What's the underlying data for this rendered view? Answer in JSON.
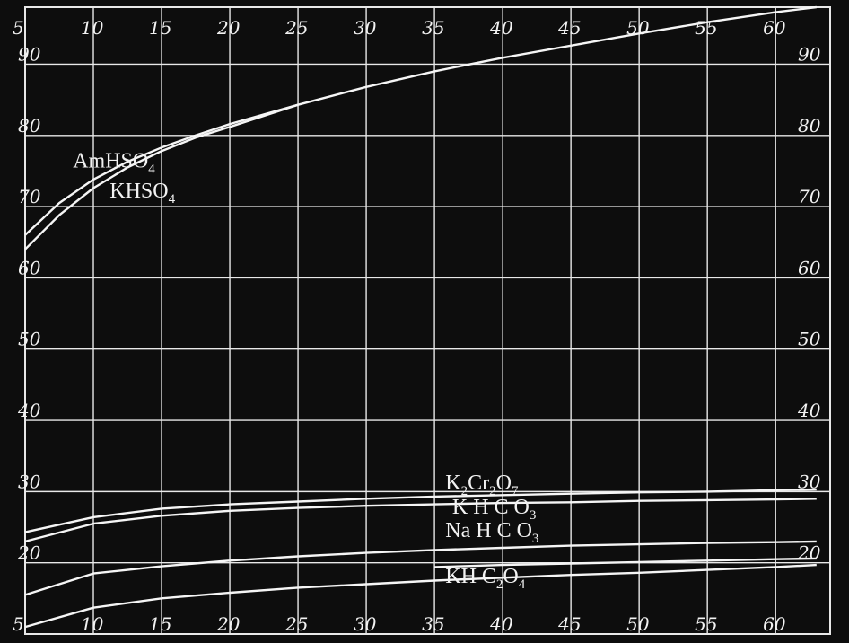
{
  "colors": {
    "background": "#0d0d0d",
    "grid": "#e8e8e8",
    "curve": "#f5f5f5"
  },
  "chart_data": {
    "type": "line",
    "title": "",
    "xlabel": "",
    "ylabel": "",
    "grid": true,
    "xlim": [
      5,
      64
    ],
    "ylim": [
      10,
      98
    ],
    "x_ticks": [
      5,
      10,
      15,
      20,
      25,
      30,
      35,
      40,
      45,
      50,
      55,
      60
    ],
    "y_ticks_left": [
      20,
      30,
      40,
      50,
      60,
      70,
      80,
      90
    ],
    "y_ticks_right": [
      20,
      30,
      40,
      50,
      60,
      70,
      80,
      90
    ],
    "x_tick_labels": [
      "5",
      "10",
      "15",
      "20",
      "25",
      "30",
      "35",
      "40",
      "45",
      "50",
      "55",
      "60"
    ],
    "y_tick_labels": [
      "20",
      "30",
      "40",
      "50",
      "60",
      "70",
      "80",
      "90"
    ],
    "series": [
      {
        "name": "AmHSO4",
        "label_parts": [
          "AmHSO",
          "4"
        ],
        "label_at": [
          8.5,
          75.5
        ],
        "x": [
          5,
          7.5,
          10,
          12.5,
          15,
          17.5,
          20,
          25,
          30,
          35,
          40,
          45,
          50,
          55,
          60,
          63
        ],
        "y": [
          66,
          70.5,
          73.8,
          76.3,
          78.3,
          80,
          81.6,
          84.3,
          86.8,
          89,
          90.9,
          92.6,
          94.3,
          95.9,
          97.3,
          98
        ]
      },
      {
        "name": "KHSO4",
        "label_parts": [
          "KHSO",
          "4"
        ],
        "label_at": [
          11.2,
          71.3
        ],
        "x": [
          5,
          7.5,
          10,
          12.5,
          15,
          17.5,
          20,
          25
        ],
        "y": [
          64,
          68.8,
          72.6,
          75.5,
          77.8,
          79.7,
          81.2,
          84.3
        ]
      },
      {
        "name": "K2Cr2O7",
        "label_parts": [
          "K",
          "2",
          "Cr",
          "2",
          "O",
          "7"
        ],
        "label_at": [
          35.8,
          30.3
        ],
        "x": [
          5,
          10,
          15,
          20,
          25,
          30,
          35,
          40,
          45,
          50,
          55,
          60,
          63
        ],
        "y": [
          24.3,
          26.4,
          27.6,
          28.2,
          28.6,
          29,
          29.3,
          29.5,
          29.7,
          29.9,
          30,
          30.2,
          30.3
        ]
      },
      {
        "name": "KHCO3",
        "label_parts": [
          "K H  C O",
          "3"
        ],
        "label_at": [
          36.3,
          26.9
        ],
        "x": [
          5,
          10,
          15,
          20,
          25,
          30,
          35,
          40,
          45,
          50,
          55,
          60,
          63
        ],
        "y": [
          23,
          25.5,
          26.6,
          27.3,
          27.7,
          28,
          28.2,
          28.4,
          28.5,
          28.7,
          28.8,
          28.9,
          29
        ]
      },
      {
        "name": "NaHCO3",
        "label_parts": [
          "Na H  C O",
          "3"
        ],
        "label_at": [
          35.8,
          23.6
        ],
        "x": [
          5,
          10,
          15,
          20,
          25,
          30,
          35,
          40,
          45,
          50,
          55,
          60,
          63
        ],
        "y": [
          15.5,
          18.5,
          19.5,
          20.3,
          20.9,
          21.4,
          21.8,
          22.1,
          22.4,
          22.6,
          22.8,
          22.9,
          23
        ]
      },
      {
        "name": "KHC2O4",
        "label_parts": [
          "KH C",
          "2",
          "O",
          "4"
        ],
        "label_at": [
          35.8,
          17.2
        ],
        "x": [
          5,
          10,
          15,
          20,
          25,
          30,
          35,
          40,
          45,
          50,
          55,
          60,
          63
        ],
        "y": [
          11,
          13.7,
          15,
          15.8,
          16.5,
          17,
          17.5,
          17.9,
          18.3,
          18.6,
          19,
          19.4,
          19.7
        ]
      },
      {
        "name": "",
        "label_parts": [],
        "label_at": null,
        "x": [
          35,
          40,
          45,
          50,
          55,
          60,
          63
        ],
        "y": [
          19.4,
          19.7,
          19.9,
          20.1,
          20.3,
          20.5,
          20.6
        ]
      }
    ]
  }
}
